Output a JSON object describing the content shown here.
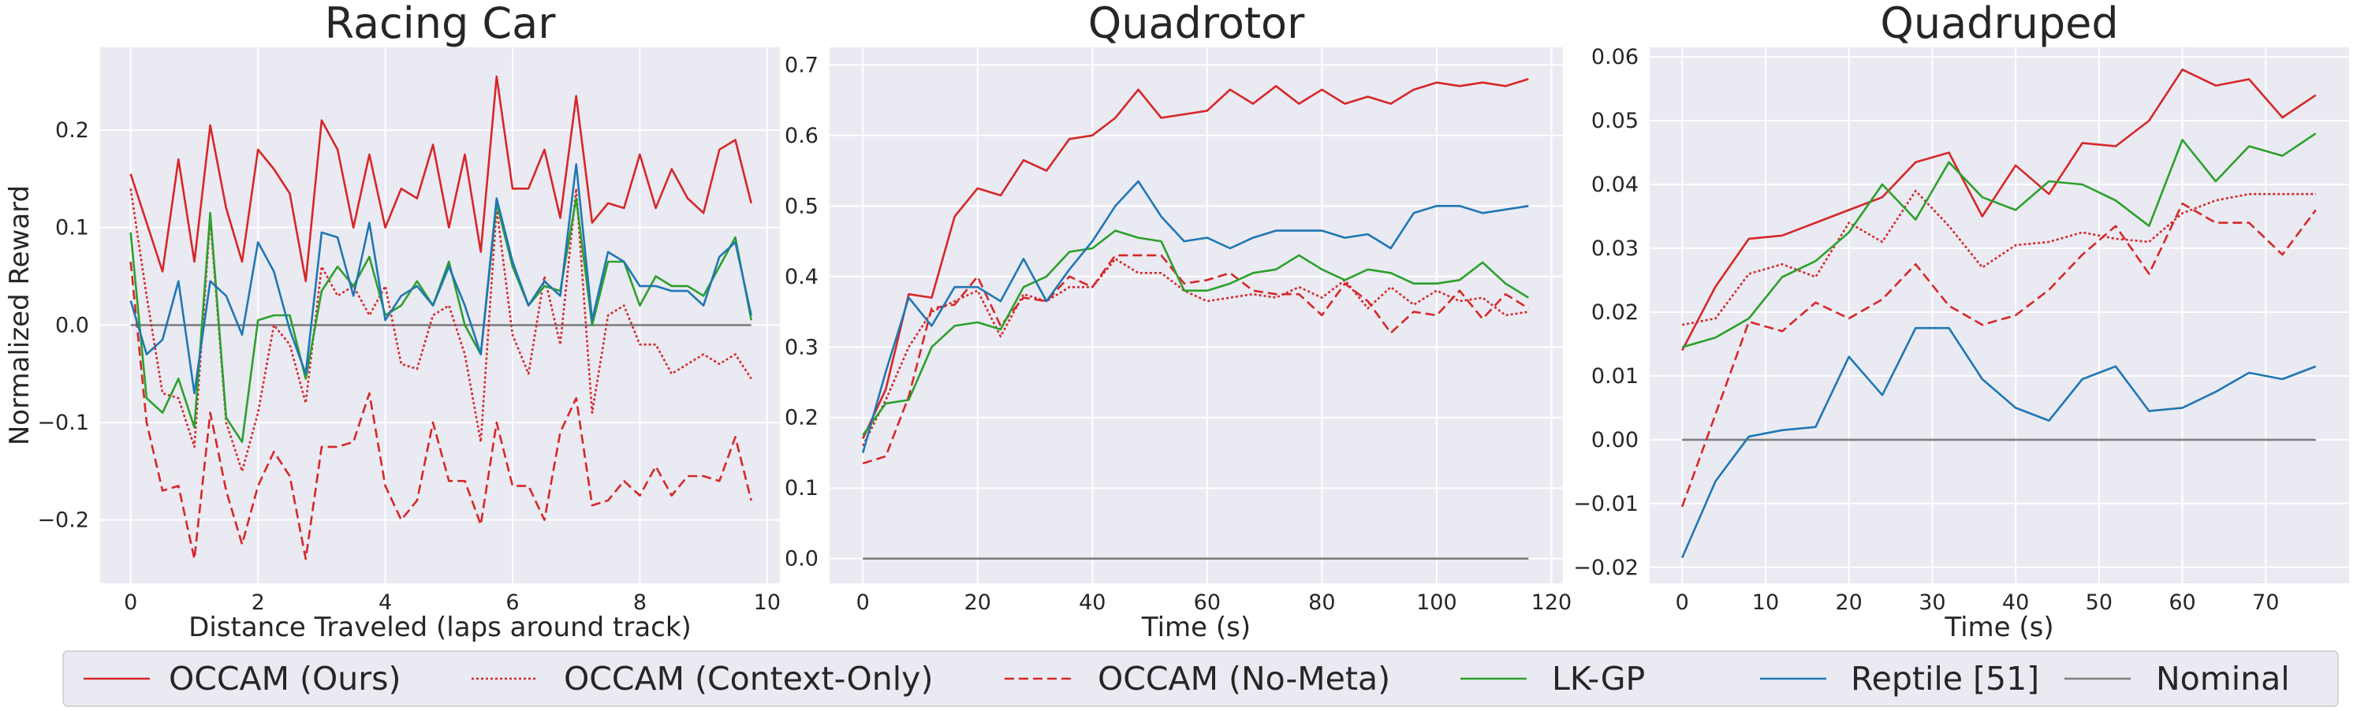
{
  "legend": {
    "placement": "bottom",
    "entries": [
      {
        "name": "OCCAM (Ours)",
        "color": "#d62728",
        "dash": "solid"
      },
      {
        "name": "OCCAM (Context-Only)",
        "color": "#d62728",
        "dash": "dotted"
      },
      {
        "name": "OCCAM (No-Meta)",
        "color": "#d62728",
        "dash": "dashed"
      },
      {
        "name": "LK-GP",
        "color": "#2ca02c",
        "dash": "solid"
      },
      {
        "name": "Reptile [51]",
        "color": "#1f77b4",
        "dash": "solid"
      },
      {
        "name": "Nominal",
        "color": "#7f7f7f",
        "dash": "solid"
      }
    ]
  },
  "style": {
    "plot_background": "#eaeaf2",
    "grid_color": "#ffffff",
    "text_color": "#262626"
  },
  "chart_data": [
    {
      "type": "line",
      "title": "Racing Car",
      "xlabel": "Distance Traveled (laps around track)",
      "ylabel": "Normalized Reward",
      "grid": true,
      "xlim": [
        -0.48,
        10.2
      ],
      "ylim": [
        -0.265,
        0.285
      ],
      "xticks": [
        0,
        2,
        4,
        6,
        8,
        10
      ],
      "yticks": [
        -0.2,
        -0.1,
        0.0,
        0.1,
        0.2
      ],
      "ytick_labels": [
        "−0.2",
        "−0.1",
        "0.0",
        "0.1",
        "0.2"
      ],
      "x": [
        0,
        0.25,
        0.5,
        0.75,
        1.0,
        1.25,
        1.5,
        1.75,
        2.0,
        2.25,
        2.5,
        2.75,
        3.0,
        3.25,
        3.5,
        3.75,
        4.0,
        4.25,
        4.5,
        4.75,
        5.0,
        5.25,
        5.5,
        5.75,
        6.0,
        6.25,
        6.5,
        6.75,
        7.0,
        7.25,
        7.5,
        7.75,
        8.0,
        8.25,
        8.5,
        8.75,
        9.0,
        9.25,
        9.5,
        9.75
      ],
      "series": [
        {
          "name": "OCCAM (Ours)",
          "values": [
            0.155,
            0.105,
            0.055,
            0.17,
            0.065,
            0.205,
            0.12,
            0.065,
            0.18,
            0.16,
            0.135,
            0.045,
            0.21,
            0.18,
            0.1,
            0.175,
            0.1,
            0.14,
            0.13,
            0.185,
            0.1,
            0.175,
            0.075,
            0.255,
            0.14,
            0.14,
            0.18,
            0.11,
            0.235,
            0.105,
            0.125,
            0.12,
            0.175,
            0.12,
            0.16,
            0.13,
            0.115,
            0.18,
            0.19,
            0.125
          ]
        },
        {
          "name": "OCCAM (Context-Only)",
          "values": [
            0.14,
            0.03,
            -0.07,
            -0.075,
            -0.125,
            0.11,
            -0.1,
            -0.15,
            -0.09,
            0.0,
            -0.02,
            -0.08,
            0.06,
            0.03,
            0.04,
            0.01,
            0.04,
            -0.04,
            -0.045,
            0.01,
            0.02,
            -0.03,
            -0.12,
            0.12,
            -0.01,
            -0.05,
            0.05,
            -0.02,
            0.14,
            -0.09,
            0.01,
            0.02,
            -0.02,
            -0.02,
            -0.05,
            -0.04,
            -0.03,
            -0.04,
            -0.03,
            -0.055
          ]
        },
        {
          "name": "OCCAM (No-Meta)",
          "values": [
            0.065,
            -0.1,
            -0.17,
            -0.165,
            -0.24,
            -0.09,
            -0.17,
            -0.225,
            -0.165,
            -0.13,
            -0.155,
            -0.24,
            -0.125,
            -0.125,
            -0.12,
            -0.07,
            -0.165,
            -0.2,
            -0.18,
            -0.1,
            -0.16,
            -0.16,
            -0.205,
            -0.1,
            -0.165,
            -0.165,
            -0.2,
            -0.11,
            -0.075,
            -0.185,
            -0.18,
            -0.16,
            -0.175,
            -0.145,
            -0.175,
            -0.155,
            -0.155,
            -0.16,
            -0.115,
            -0.18
          ]
        },
        {
          "name": "LK-GP",
          "values": [
            0.095,
            -0.075,
            -0.09,
            -0.055,
            -0.105,
            0.115,
            -0.095,
            -0.12,
            0.005,
            0.01,
            0.01,
            -0.055,
            0.035,
            0.06,
            0.04,
            0.07,
            0.01,
            0.02,
            0.045,
            0.02,
            0.065,
            0.0,
            -0.03,
            0.125,
            0.06,
            0.02,
            0.04,
            0.035,
            0.13,
            0.0,
            0.065,
            0.065,
            0.02,
            0.05,
            0.04,
            0.04,
            0.03,
            0.06,
            0.09,
            0.005
          ]
        },
        {
          "name": "Reptile [51]",
          "values": [
            0.025,
            -0.03,
            -0.015,
            0.045,
            -0.07,
            0.045,
            0.03,
            -0.01,
            0.085,
            0.055,
            -0.005,
            -0.05,
            0.095,
            0.09,
            0.03,
            0.105,
            0.005,
            0.03,
            0.04,
            0.02,
            0.06,
            0.02,
            -0.03,
            0.13,
            0.065,
            0.02,
            0.045,
            0.03,
            0.165,
            0.005,
            0.075,
            0.065,
            0.04,
            0.04,
            0.035,
            0.035,
            0.02,
            0.07,
            0.085,
            0.01
          ]
        },
        {
          "name": "Nominal",
          "values": [
            0.0,
            0.0,
            0.0,
            0.0,
            0.0,
            0.0,
            0.0,
            0.0,
            0.0,
            0.0,
            0.0,
            0.0,
            0.0,
            0.0,
            0.0,
            0.0,
            0.0,
            0.0,
            0.0,
            0.0,
            0.0,
            0.0,
            0.0,
            0.0,
            0.0,
            0.0,
            0.0,
            0.0,
            0.0,
            0.0,
            0.0,
            0.0,
            0.0,
            0.0,
            0.0,
            0.0,
            0.0,
            0.0,
            0.0,
            0.0
          ]
        }
      ]
    },
    {
      "type": "line",
      "title": "Quadrotor",
      "xlabel": "Time (s)",
      "ylabel": "",
      "grid": true,
      "xlim": [
        -5.8,
        122
      ],
      "ylim": [
        -0.035,
        0.725
      ],
      "xticks": [
        0,
        20,
        40,
        60,
        80,
        100,
        120
      ],
      "yticks": [
        0.0,
        0.1,
        0.2,
        0.3,
        0.4,
        0.5,
        0.6,
        0.7
      ],
      "ytick_labels": [
        "0.0",
        "0.1",
        "0.2",
        "0.3",
        "0.4",
        "0.5",
        "0.6",
        "0.7"
      ],
      "x": [
        0,
        4,
        8,
        12,
        16,
        20,
        24,
        28,
        32,
        36,
        40,
        44,
        48,
        52,
        56,
        60,
        64,
        68,
        72,
        76,
        80,
        84,
        88,
        92,
        96,
        100,
        104,
        108,
        112,
        116
      ],
      "series": [
        {
          "name": "OCCAM (Ours)",
          "values": [
            0.17,
            0.24,
            0.375,
            0.37,
            0.485,
            0.525,
            0.515,
            0.565,
            0.55,
            0.595,
            0.6,
            0.625,
            0.665,
            0.625,
            0.63,
            0.635,
            0.665,
            0.645,
            0.67,
            0.645,
            0.665,
            0.645,
            0.655,
            0.645,
            0.665,
            0.675,
            0.67,
            0.675,
            0.67,
            0.68
          ]
        },
        {
          "name": "OCCAM (Context-Only)",
          "values": [
            0.16,
            0.225,
            0.3,
            0.35,
            0.365,
            0.38,
            0.315,
            0.375,
            0.365,
            0.385,
            0.385,
            0.425,
            0.405,
            0.405,
            0.38,
            0.365,
            0.37,
            0.375,
            0.37,
            0.385,
            0.37,
            0.395,
            0.355,
            0.385,
            0.36,
            0.38,
            0.365,
            0.37,
            0.345,
            0.35
          ]
        },
        {
          "name": "OCCAM (No-Meta)",
          "values": [
            0.135,
            0.145,
            0.23,
            0.355,
            0.36,
            0.4,
            0.33,
            0.37,
            0.365,
            0.4,
            0.385,
            0.43,
            0.43,
            0.43,
            0.39,
            0.395,
            0.405,
            0.38,
            0.375,
            0.375,
            0.345,
            0.39,
            0.365,
            0.32,
            0.35,
            0.345,
            0.38,
            0.34,
            0.375,
            0.355
          ]
        },
        {
          "name": "LK-GP",
          "values": [
            0.175,
            0.22,
            0.225,
            0.3,
            0.33,
            0.335,
            0.325,
            0.385,
            0.4,
            0.435,
            0.44,
            0.465,
            0.455,
            0.45,
            0.38,
            0.38,
            0.39,
            0.405,
            0.41,
            0.43,
            0.41,
            0.395,
            0.41,
            0.405,
            0.39,
            0.39,
            0.395,
            0.42,
            0.39,
            0.37
          ]
        },
        {
          "name": "Reptile [51]",
          "values": [
            0.15,
            0.265,
            0.37,
            0.33,
            0.385,
            0.385,
            0.365,
            0.425,
            0.365,
            0.41,
            0.45,
            0.5,
            0.535,
            0.485,
            0.45,
            0.455,
            0.44,
            0.455,
            0.465,
            0.465,
            0.465,
            0.455,
            0.46,
            0.44,
            0.49,
            0.5,
            0.5,
            0.49,
            0.495,
            0.5
          ]
        },
        {
          "name": "Nominal",
          "values": [
            0.0,
            0.0,
            0.0,
            0.0,
            0.0,
            0.0,
            0.0,
            0.0,
            0.0,
            0.0,
            0.0,
            0.0,
            0.0,
            0.0,
            0.0,
            0.0,
            0.0,
            0.0,
            0.0,
            0.0,
            0.0,
            0.0,
            0.0,
            0.0,
            0.0,
            0.0,
            0.0,
            0.0,
            0.0,
            0.0
          ]
        }
      ]
    },
    {
      "type": "line",
      "title": "Quadruped",
      "xlabel": "Time (s)",
      "ylabel": "",
      "grid": true,
      "xlim": [
        -3.9,
        80
      ],
      "ylim": [
        -0.0225,
        0.0615
      ],
      "xticks": [
        0,
        10,
        20,
        30,
        40,
        50,
        60,
        70
      ],
      "yticks": [
        -0.02,
        -0.01,
        0.0,
        0.01,
        0.02,
        0.03,
        0.04,
        0.05,
        0.06
      ],
      "ytick_labels": [
        "−0.02",
        "−0.01",
        "0.00",
        "0.01",
        "0.02",
        "0.03",
        "0.04",
        "0.05",
        "0.06"
      ],
      "x": [
        0,
        4,
        8,
        12,
        16,
        20,
        24,
        28,
        32,
        36,
        40,
        44,
        48,
        52,
        56,
        60,
        64,
        68,
        72,
        76
      ],
      "series": [
        {
          "name": "OCCAM (Ours)",
          "values": [
            0.014,
            0.024,
            0.0315,
            0.032,
            0.034,
            0.036,
            0.038,
            0.0435,
            0.045,
            0.035,
            0.043,
            0.0385,
            0.0465,
            0.046,
            0.05,
            0.058,
            0.0555,
            0.0565,
            0.0505,
            0.054
          ]
        },
        {
          "name": "OCCAM (Context-Only)",
          "values": [
            0.018,
            0.019,
            0.026,
            0.0275,
            0.0255,
            0.034,
            0.031,
            0.039,
            0.0335,
            0.027,
            0.0305,
            0.031,
            0.0325,
            0.0315,
            0.031,
            0.0355,
            0.0375,
            0.0385,
            0.0385,
            0.0385
          ]
        },
        {
          "name": "OCCAM (No-Meta)",
          "values": [
            -0.0105,
            0.004,
            0.0185,
            0.017,
            0.0215,
            0.019,
            0.022,
            0.0275,
            0.021,
            0.018,
            0.0195,
            0.0235,
            0.029,
            0.0335,
            0.026,
            0.037,
            0.034,
            0.034,
            0.029,
            0.036
          ]
        },
        {
          "name": "LK-GP",
          "values": [
            0.0145,
            0.016,
            0.019,
            0.0255,
            0.028,
            0.0325,
            0.04,
            0.0345,
            0.0435,
            0.038,
            0.036,
            0.0405,
            0.04,
            0.0375,
            0.0335,
            0.047,
            0.0405,
            0.046,
            0.0445,
            0.048
          ]
        },
        {
          "name": "Reptile [51]",
          "values": [
            -0.0185,
            -0.0065,
            0.0005,
            0.0015,
            0.002,
            0.013,
            0.007,
            0.0175,
            0.0175,
            0.0095,
            0.005,
            0.003,
            0.0095,
            0.0115,
            0.0045,
            0.005,
            0.0075,
            0.0105,
            0.0095,
            0.0115
          ]
        },
        {
          "name": "Nominal",
          "values": [
            0.0,
            0.0,
            0.0,
            0.0,
            0.0,
            0.0,
            0.0,
            0.0,
            0.0,
            0.0,
            0.0,
            0.0,
            0.0,
            0.0,
            0.0,
            0.0,
            0.0,
            0.0,
            0.0,
            0.0
          ]
        }
      ]
    }
  ]
}
